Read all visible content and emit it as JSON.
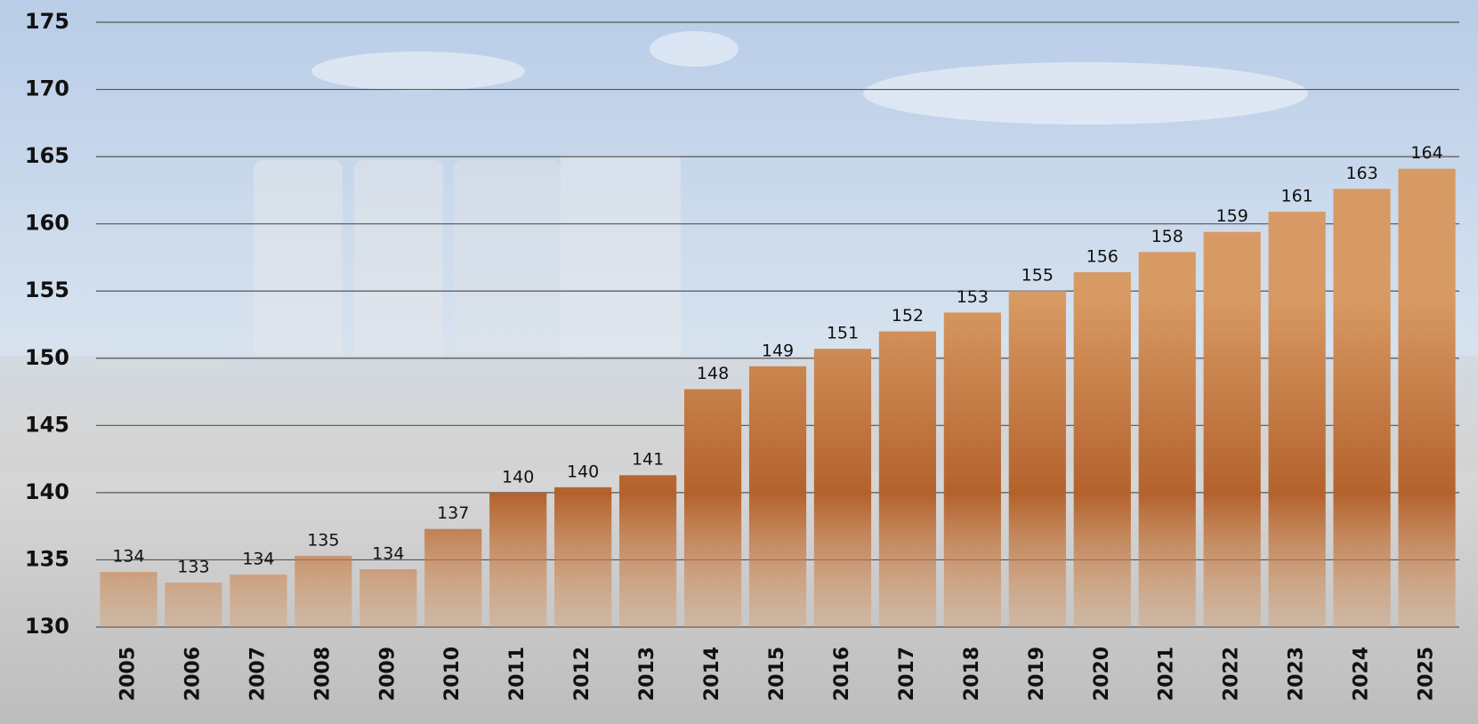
{
  "chart_data": {
    "type": "bar",
    "categories": [
      "2005",
      "2006",
      "2007",
      "2008",
      "2009",
      "2010",
      "2011",
      "2012",
      "2013",
      "2014",
      "2015",
      "2016",
      "2017",
      "2018",
      "2019",
      "2020",
      "2021",
      "2022",
      "2023",
      "2024",
      "2025"
    ],
    "values": [
      134.1,
      133.3,
      133.9,
      135.3,
      134.3,
      137.3,
      140.0,
      140.4,
      141.3,
      147.7,
      149.4,
      150.7,
      152.0,
      153.4,
      155.0,
      156.4,
      157.9,
      159.4,
      160.9,
      162.6,
      164.1
    ],
    "value_labels": [
      "134",
      "133",
      "134",
      "135",
      "134",
      "137",
      "140",
      "140",
      "141",
      "148",
      "149",
      "151",
      "152",
      "153",
      "155",
      "156",
      "158",
      "159",
      "161",
      "163",
      "164"
    ],
    "color": "#d89a64",
    "ylim": [
      130,
      175
    ],
    "yticks": [
      130,
      135,
      140,
      145,
      150,
      155,
      160,
      165,
      170,
      175
    ],
    "grid": true
  }
}
